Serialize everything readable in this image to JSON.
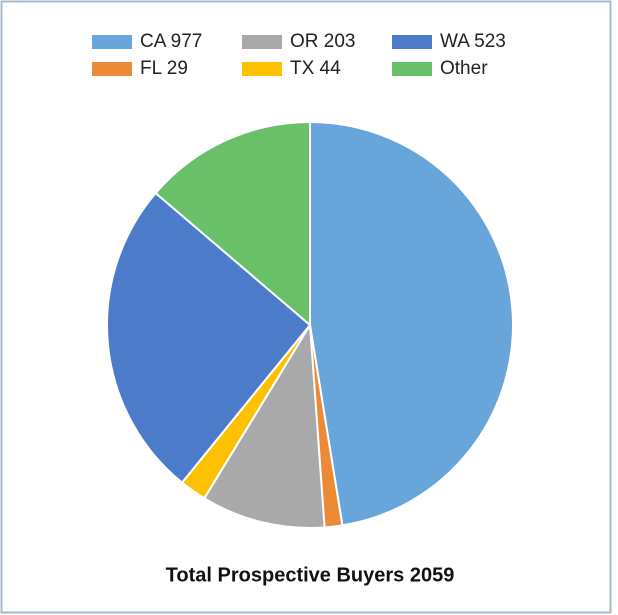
{
  "chart_data": {
    "type": "pie",
    "title": "Total Prospective Buyers 2059",
    "categories": [
      "CA 977",
      "FL 29",
      "OR 203",
      "TX 44",
      "WA 523",
      "Other"
    ],
    "values": [
      977,
      29,
      203,
      44,
      523,
      283
    ],
    "colors": [
      "#67a5da",
      "#ed8a37",
      "#a9a9a9",
      "#fec102",
      "#4c7cc9",
      "#6abf69"
    ],
    "legend": "top"
  }
}
